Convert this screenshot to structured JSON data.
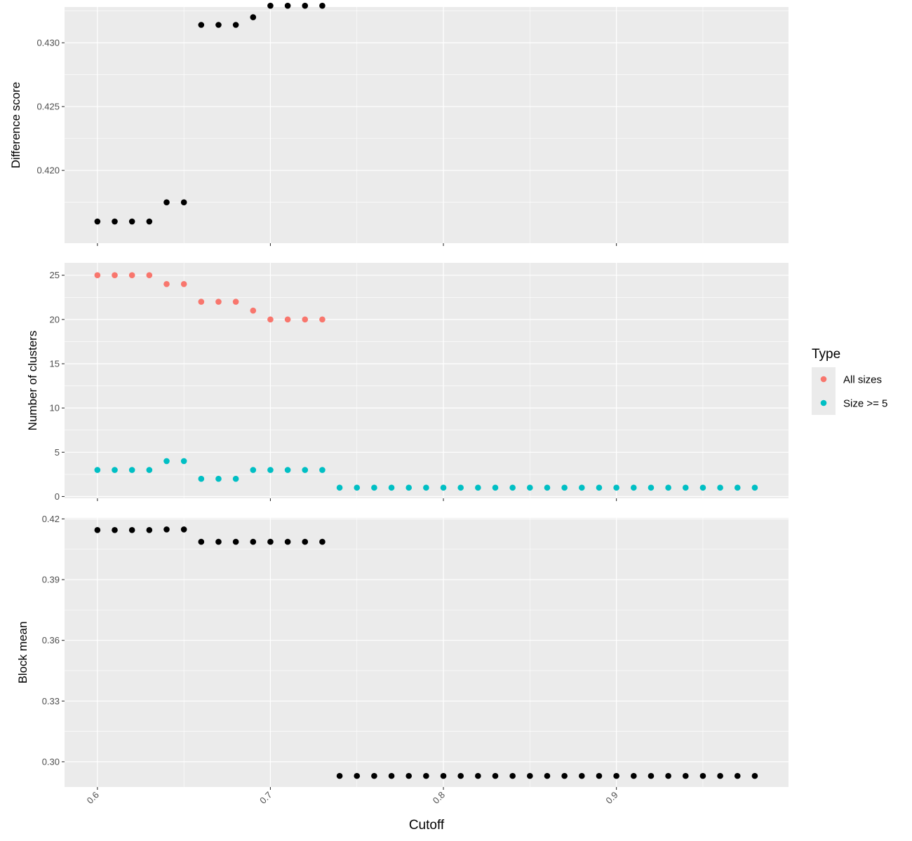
{
  "chart_data": {
    "type": "scatter",
    "xlabel": "Cutoff",
    "x_ticks": [
      "0.6",
      "0.7",
      "0.8",
      "0.9"
    ],
    "x_tick_values": [
      0.6,
      0.7,
      0.8,
      0.9
    ],
    "xlim": [
      0.581,
      0.9995
    ],
    "grid": true,
    "legend": {
      "title": "Type",
      "position": "right",
      "items": [
        {
          "label": "All sizes",
          "color": "#F8766D"
        },
        {
          "label": "Size >= 5",
          "color": "#00BFC4"
        }
      ]
    },
    "panels": [
      {
        "ylabel": "Difference score",
        "ylim": [
          0.4143,
          0.4328
        ],
        "y_ticks": [
          "0.420",
          "0.425",
          "0.430"
        ],
        "y_tick_values": [
          0.42,
          0.425,
          0.43
        ],
        "series": [
          {
            "color": "#000000",
            "x": [
              0.6,
              0.61,
              0.62,
              0.63,
              0.64,
              0.65,
              0.66,
              0.67,
              0.68,
              0.69,
              0.7,
              0.71,
              0.72,
              0.73
            ],
            "y": [
              0.416,
              0.416,
              0.416,
              0.416,
              0.4175,
              0.4175,
              0.4314,
              0.4314,
              0.4314,
              0.432,
              0.4329,
              0.4329,
              0.4329,
              0.4329
            ]
          }
        ]
      },
      {
        "ylabel": "Number of clusters",
        "ylim": [
          -0.2,
          26.4
        ],
        "y_ticks": [
          "0",
          "5",
          "10",
          "15",
          "20",
          "25"
        ],
        "y_tick_values": [
          0,
          5,
          10,
          15,
          20,
          25
        ],
        "series": [
          {
            "name": "All sizes",
            "color": "#F8766D",
            "x": [
              0.6,
              0.61,
              0.62,
              0.63,
              0.64,
              0.65,
              0.66,
              0.67,
              0.68,
              0.69,
              0.7,
              0.71,
              0.72,
              0.73
            ],
            "y": [
              25,
              25,
              25,
              25,
              24,
              24,
              22,
              22,
              22,
              21,
              20,
              20,
              20,
              20
            ]
          },
          {
            "name": "Size >= 5",
            "color": "#00BFC4",
            "x": [
              0.6,
              0.61,
              0.62,
              0.63,
              0.64,
              0.65,
              0.66,
              0.67,
              0.68,
              0.69,
              0.7,
              0.71,
              0.72,
              0.73,
              0.74,
              0.75,
              0.76,
              0.77,
              0.78,
              0.79,
              0.8,
              0.81,
              0.82,
              0.83,
              0.84,
              0.85,
              0.86,
              0.87,
              0.88,
              0.89,
              0.9,
              0.91,
              0.92,
              0.93,
              0.94,
              0.95,
              0.96,
              0.97,
              0.98
            ],
            "y": [
              3,
              3,
              3,
              3,
              4,
              4,
              2,
              2,
              2,
              3,
              3,
              3,
              3,
              3,
              1,
              1,
              1,
              1,
              1,
              1,
              1,
              1,
              1,
              1,
              1,
              1,
              1,
              1,
              1,
              1,
              1,
              1,
              1,
              1,
              1,
              1,
              1,
              1,
              1
            ]
          }
        ]
      },
      {
        "ylabel": "Block mean",
        "ylim": [
          0.2875,
          0.4205
        ],
        "y_ticks": [
          "0.30",
          "0.33",
          "0.36",
          "0.39",
          "0.42"
        ],
        "y_tick_values": [
          0.3,
          0.33,
          0.36,
          0.39,
          0.42
        ],
        "series": [
          {
            "color": "#000000",
            "x": [
              0.6,
              0.61,
              0.62,
              0.63,
              0.64,
              0.65,
              0.66,
              0.67,
              0.68,
              0.69,
              0.7,
              0.71,
              0.72,
              0.73,
              0.74,
              0.75,
              0.76,
              0.77,
              0.78,
              0.79,
              0.8,
              0.81,
              0.82,
              0.83,
              0.84,
              0.85,
              0.86,
              0.87,
              0.88,
              0.89,
              0.9,
              0.91,
              0.92,
              0.93,
              0.94,
              0.95,
              0.96,
              0.97,
              0.98
            ],
            "y": [
              0.4145,
              0.4145,
              0.4145,
              0.4145,
              0.4148,
              0.4148,
              0.4087,
              0.4087,
              0.4087,
              0.4087,
              0.4087,
              0.4087,
              0.4087,
              0.4087,
              0.293,
              0.293,
              0.293,
              0.293,
              0.293,
              0.293,
              0.293,
              0.293,
              0.293,
              0.293,
              0.293,
              0.293,
              0.293,
              0.293,
              0.293,
              0.293,
              0.293,
              0.293,
              0.293,
              0.293,
              0.293,
              0.293,
              0.293,
              0.293,
              0.293
            ]
          }
        ]
      }
    ]
  }
}
